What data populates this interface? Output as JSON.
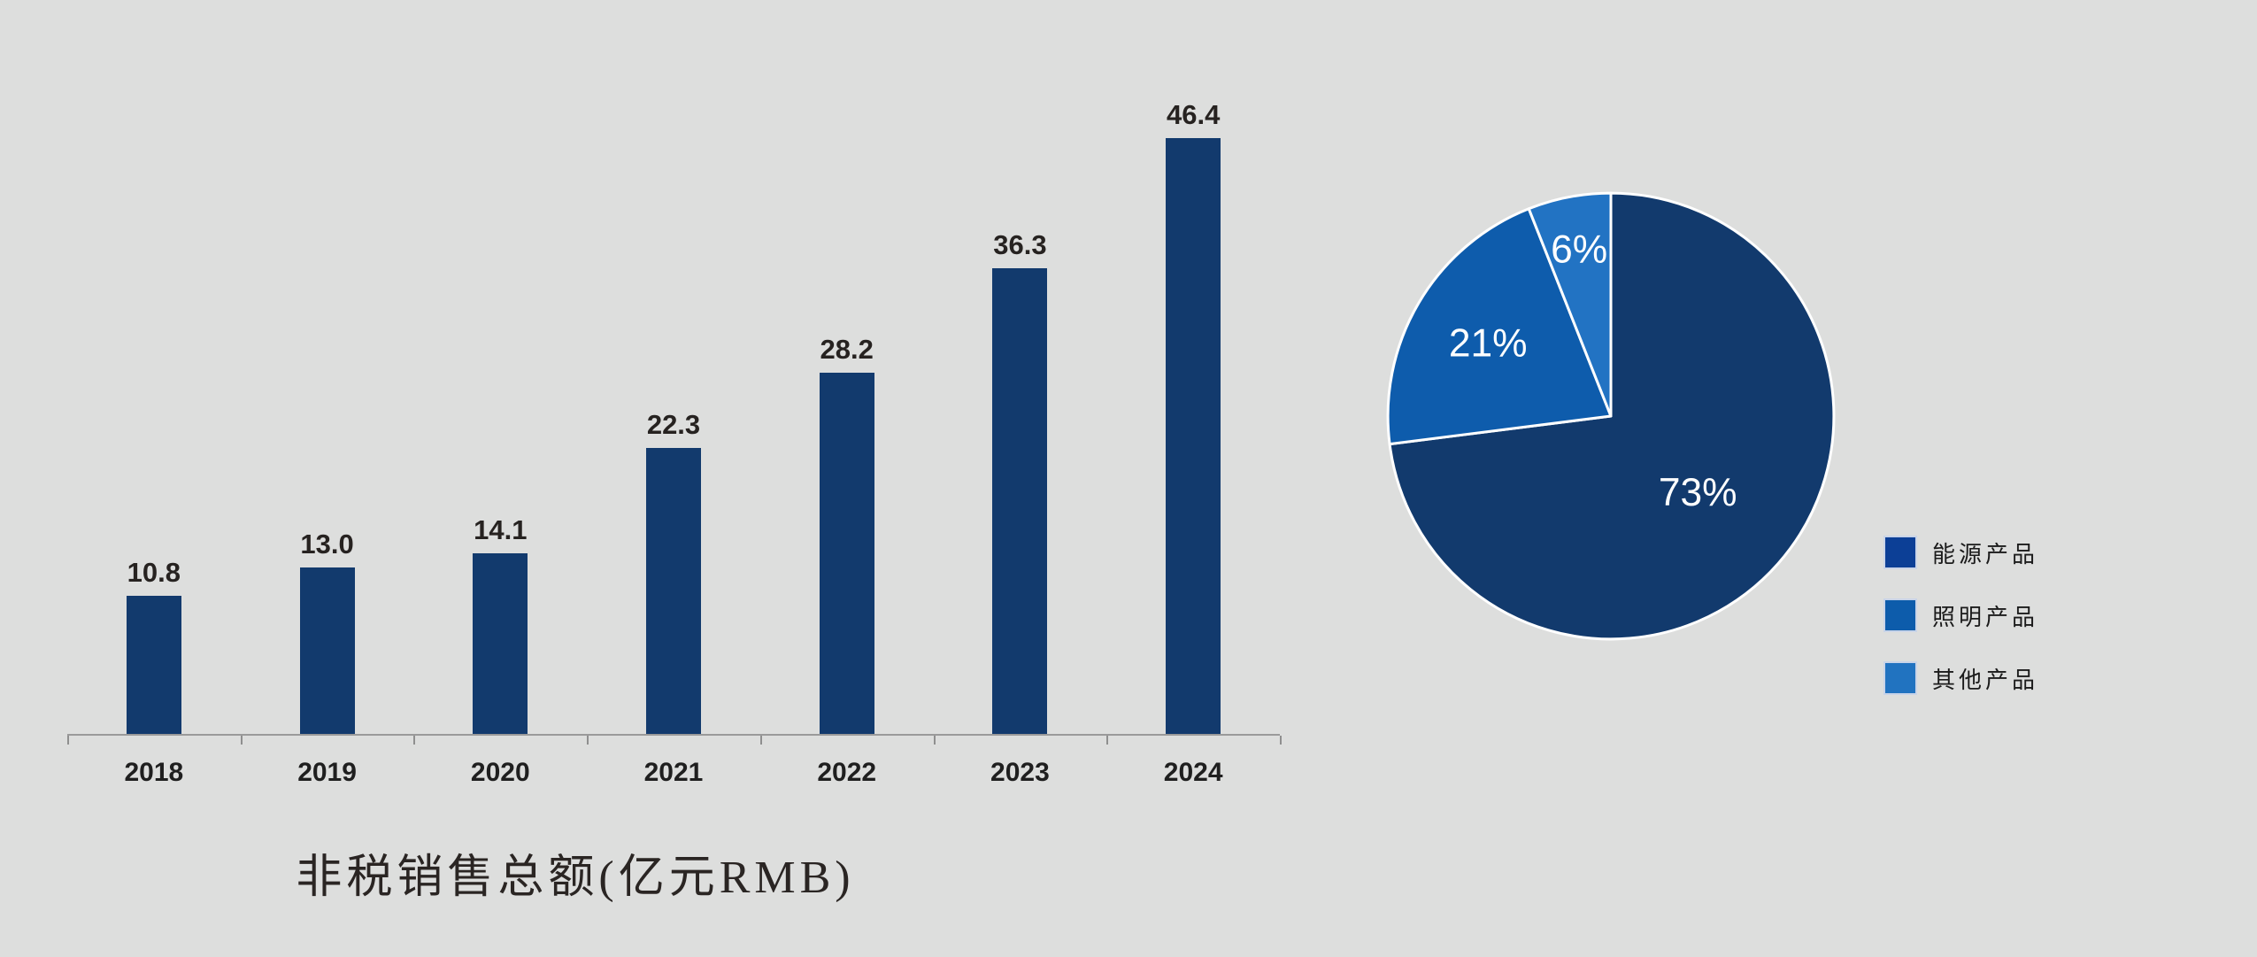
{
  "page": {
    "background_color": "#dddedd"
  },
  "chart_data": [
    {
      "type": "bar",
      "title": "非税销售总额(亿元RMB)",
      "categories": [
        "2018",
        "2019",
        "2020",
        "2021",
        "2022",
        "2023",
        "2024"
      ],
      "values": [
        10.8,
        13.0,
        14.1,
        22.3,
        28.2,
        36.3,
        46.4
      ],
      "value_labels": [
        "10.8",
        "13.0",
        "14.1",
        "22.3",
        "28.2",
        "36.3",
        "46.4"
      ],
      "xlabel": "",
      "ylabel": "",
      "ylim": [
        0,
        52
      ],
      "grid": false,
      "bar_color": "#123a6d",
      "value_label_color": "#262220",
      "category_label_color": "#1f1f1f",
      "axis_color": "#9a9a9a"
    },
    {
      "type": "pie",
      "direction": "clockwise",
      "start_angle_deg": 0,
      "legend_position": "right",
      "slice_label_color": "#ffffff",
      "stroke_color": "#ffffff",
      "slices": [
        {
          "label": "能源产品",
          "value": 73,
          "display": "73%",
          "color": "#123a6d",
          "legend_color": "#0c3f96",
          "label_radius": 0.52
        },
        {
          "label": "照明产品",
          "value": 21,
          "display": "21%",
          "color": "#0e5cac",
          "legend_color": "#0d5cab",
          "label_radius": 0.64
        },
        {
          "label": "其他产品",
          "value": 6,
          "display": "6%",
          "color": "#2273c3",
          "legend_color": "#2173c0",
          "label_radius": 0.76
        }
      ]
    }
  ]
}
